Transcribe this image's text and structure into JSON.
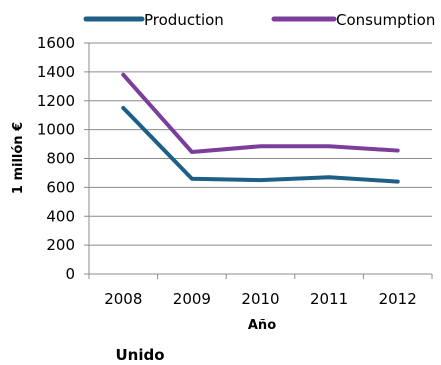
{
  "chart_data": {
    "type": "line",
    "title": "",
    "subtitle": "Unido",
    "xlabel": "Año",
    "ylabel": "1 millón €",
    "categories": [
      "2008",
      "2009",
      "2010",
      "2011",
      "2012"
    ],
    "ylim": [
      0,
      1600
    ],
    "yticks": [
      0,
      200,
      400,
      600,
      800,
      1000,
      1200,
      1400,
      1600
    ],
    "grid": true,
    "legend_position": "top",
    "series": [
      {
        "name": "Production",
        "color": "#1d5f86",
        "values": [
          1150,
          660,
          650,
          670,
          640
        ]
      },
      {
        "name": "Consumption",
        "color": "#7a3f9a",
        "values": [
          1380,
          845,
          885,
          885,
          855
        ]
      }
    ]
  }
}
